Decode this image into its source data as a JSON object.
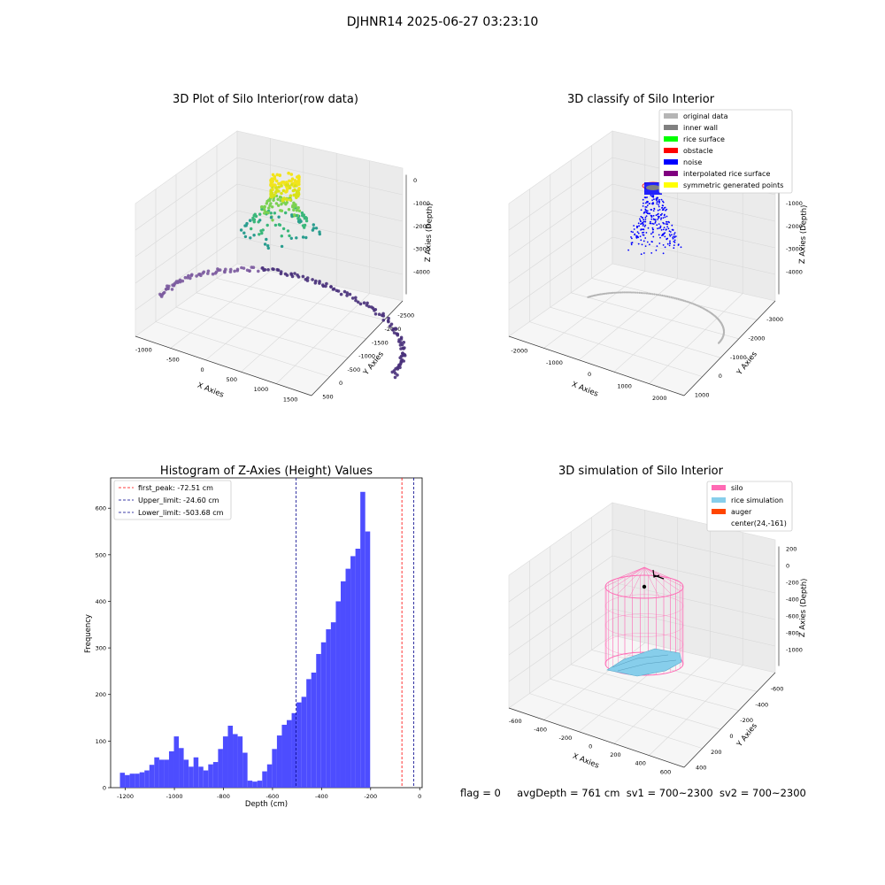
{
  "suptitle": "DJHNR14 2025-06-27 03:23:10",
  "status": {
    "flag": "flag = 0",
    "avg_depth": "avgDepth = 761 cm",
    "sv1": "sv1 = 700~2300",
    "sv2": "sv2 = 700~2300"
  },
  "colors": {
    "raw_top": "#f2e41c",
    "raw_mid": "#3ab77a",
    "raw_low": "#48307a",
    "original_data": "#b5b5b5",
    "inner_wall": "#808080",
    "rice_surface": "#00ff00",
    "obstacle": "#ff0000",
    "noise": "#0000ff",
    "interpolated_rice_surface": "#800080",
    "symmetric_generated_points": "#ffff00",
    "silo": "#ff69b4",
    "rice_simulation": "#87ceeb",
    "auger": "#ff4500",
    "hist_bar": "#4d4dff",
    "first_peak_line": "#ff0000",
    "limit_line": "#00008b"
  },
  "chart_data": [
    {
      "type": "scatter",
      "subtype": "3d",
      "title": "3D Plot of Silo Interior(row data)",
      "xlabel": "X Axies",
      "ylabel": "Y Axies",
      "zlabel": "Z Axies (Depth)",
      "x_ticks": [
        "-1000",
        "-500",
        "0",
        "500",
        "1000",
        "1500"
      ],
      "y_ticks": [
        "500",
        "0",
        "-500",
        "-1000",
        "-1500",
        "-2000",
        "-2500"
      ],
      "z_ticks": [
        "0",
        "-1000",
        "-2000",
        "-3000",
        "-4000"
      ],
      "xlim": [
        -1300,
        1800
      ],
      "ylim": [
        -2600,
        700
      ],
      "zlim": [
        -4500,
        200
      ],
      "colormap": "viridis-by-depth"
    },
    {
      "type": "scatter",
      "subtype": "3d",
      "title": "3D classify of Silo Interior",
      "xlabel": "X Axies",
      "ylabel": "Y Axies",
      "zlabel": "Z Axies (Depth)",
      "x_ticks": [
        "-2000",
        "-1000",
        "0",
        "1000",
        "2000"
      ],
      "y_ticks": [
        "1000",
        "0",
        "-1000",
        "-2000",
        "-3000"
      ],
      "z_ticks": [
        "0",
        "-1000",
        "-2000",
        "-3000",
        "-4000"
      ],
      "legend": [
        "original data",
        "inner wall",
        "rice surface",
        "obstacle",
        "noise",
        "interpolated rice surface",
        "symmetric generated points"
      ],
      "legend_placement": "top-right"
    },
    {
      "type": "bar",
      "subtype": "histogram",
      "title": "Histogram of Z-Axies (Height) Values",
      "xlabel": "Depth (cm)",
      "ylabel": "Frequency",
      "xlim": [
        -1260,
        10
      ],
      "ylim": [
        0,
        665
      ],
      "x_ticks": [
        -1200,
        -1000,
        -800,
        -600,
        -400,
        -200,
        0
      ],
      "y_ticks": [
        0,
        100,
        200,
        300,
        400,
        500,
        600
      ],
      "bin_start": -1222,
      "bin_width": 20,
      "values": [
        32,
        27,
        30,
        30,
        33,
        37,
        49,
        65,
        60,
        60,
        78,
        110,
        85,
        60,
        45,
        65,
        45,
        37,
        50,
        55,
        83,
        110,
        133,
        115,
        110,
        75,
        15,
        13,
        15,
        35,
        50,
        83,
        112,
        135,
        145,
        160,
        183,
        195,
        233,
        247,
        287,
        312,
        340,
        355,
        400,
        443,
        470,
        497,
        513,
        635,
        550
      ],
      "vlines": [
        {
          "label": "first_peak: -72.51 cm",
          "x": -72.51,
          "style": "red-dashed"
        },
        {
          "label": "Upper_limit: -24.60 cm",
          "x": -24.6,
          "style": "navy-dashed"
        },
        {
          "label": "Lower_limit: -503.68 cm",
          "x": -503.68,
          "style": "navy-dashed"
        }
      ],
      "legend_placement": "top-left",
      "grid": false
    },
    {
      "type": "scatter",
      "subtype": "3d-surface",
      "title": "3D simulation of Silo Interior",
      "xlabel": "X Axies",
      "ylabel": "Y Axies",
      "zlabel": "Z Axies (Depth)",
      "x_ticks": [
        "-600",
        "-400",
        "-200",
        "0",
        "200",
        "400",
        "600"
      ],
      "y_ticks": [
        "400",
        "200",
        "0",
        "-200",
        "-400",
        "-600"
      ],
      "z_ticks": [
        "200",
        "0",
        "-200",
        "-400",
        "-600",
        "-800",
        "-1000"
      ],
      "legend": [
        "silo",
        "rice simulation",
        "auger",
        "center(24,-161)"
      ],
      "legend_placement": "top-right"
    }
  ]
}
